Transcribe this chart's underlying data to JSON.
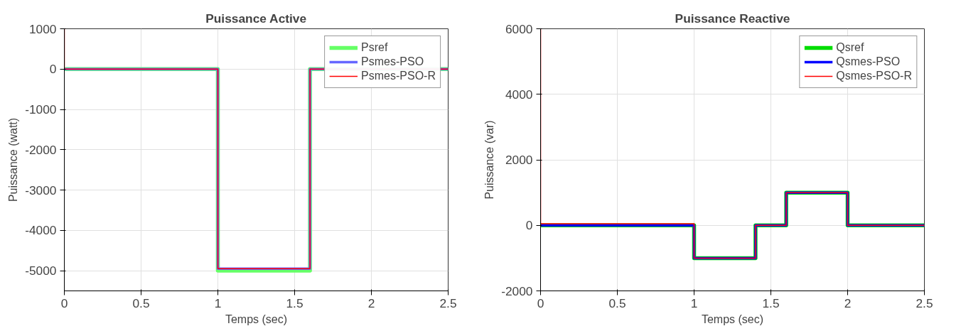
{
  "chart_data": [
    {
      "type": "line",
      "title": "Puissance Active",
      "xlabel": "Temps (sec)",
      "ylabel": "Puissance (watt)",
      "xlim": [
        0,
        2.5
      ],
      "ylim": [
        -5500,
        1000
      ],
      "xticks": [
        0,
        0.5,
        1,
        1.5,
        2,
        2.5
      ],
      "yticks": [
        -5000,
        -4000,
        -3000,
        -2000,
        -1000,
        0,
        1000
      ],
      "grid": true,
      "legend": "top right",
      "series": [
        {
          "name": "Psref",
          "color": "#66ff66",
          "x": [
            0,
            1,
            1,
            1.6,
            1.6,
            2.5
          ],
          "values": [
            0,
            0,
            -5000,
            -5000,
            0,
            0
          ]
        },
        {
          "name": "Psmes-PSO",
          "color": "#6666ff",
          "x": [
            0,
            1,
            1,
            1.6,
            1.6,
            2.5
          ],
          "values": [
            0,
            0,
            -4950,
            -4950,
            0,
            0
          ]
        },
        {
          "name": "Psmes-PSO-R",
          "color": "#ff0000",
          "x": [
            0,
            0,
            0.005,
            1,
            1,
            1.6,
            1.6,
            2.5
          ],
          "values": [
            1000,
            0,
            0,
            0,
            -4950,
            -4950,
            0,
            0
          ]
        }
      ]
    },
    {
      "type": "line",
      "title": "Puissance Reactive",
      "xlabel": "Temps (sec)",
      "ylabel": "Puissance (var)",
      "xlim": [
        0,
        2.5
      ],
      "ylim": [
        -2000,
        6000
      ],
      "xticks": [
        0,
        0.5,
        1,
        1.5,
        2,
        2.5
      ],
      "yticks": [
        -2000,
        0,
        2000,
        4000,
        6000
      ],
      "grid": true,
      "legend": "top right",
      "series": [
        {
          "name": "Qsref",
          "color": "#00dd00",
          "x": [
            0,
            1,
            1,
            1.4,
            1.4,
            1.6,
            1.6,
            2,
            2,
            2.5
          ],
          "values": [
            0,
            0,
            -1000,
            -1000,
            0,
            0,
            1000,
            1000,
            0,
            0
          ]
        },
        {
          "name": "Qsmes-PSO",
          "color": "#0000ff",
          "x": [
            0,
            1,
            1,
            1.4,
            1.4,
            1.6,
            1.6,
            2,
            2,
            2.5
          ],
          "values": [
            0,
            0,
            -1000,
            -1000,
            0,
            0,
            1000,
            1000,
            0,
            0
          ]
        },
        {
          "name": "Qsmes-PSO-R",
          "color": "#ff0000",
          "x": [
            0,
            0,
            0.005,
            1,
            1,
            1.4,
            1.4,
            1.6,
            1.6,
            2,
            2,
            2.5
          ],
          "values": [
            6000,
            50,
            50,
            50,
            -1000,
            -1000,
            0,
            0,
            1000,
            1000,
            0,
            0
          ]
        }
      ]
    }
  ]
}
